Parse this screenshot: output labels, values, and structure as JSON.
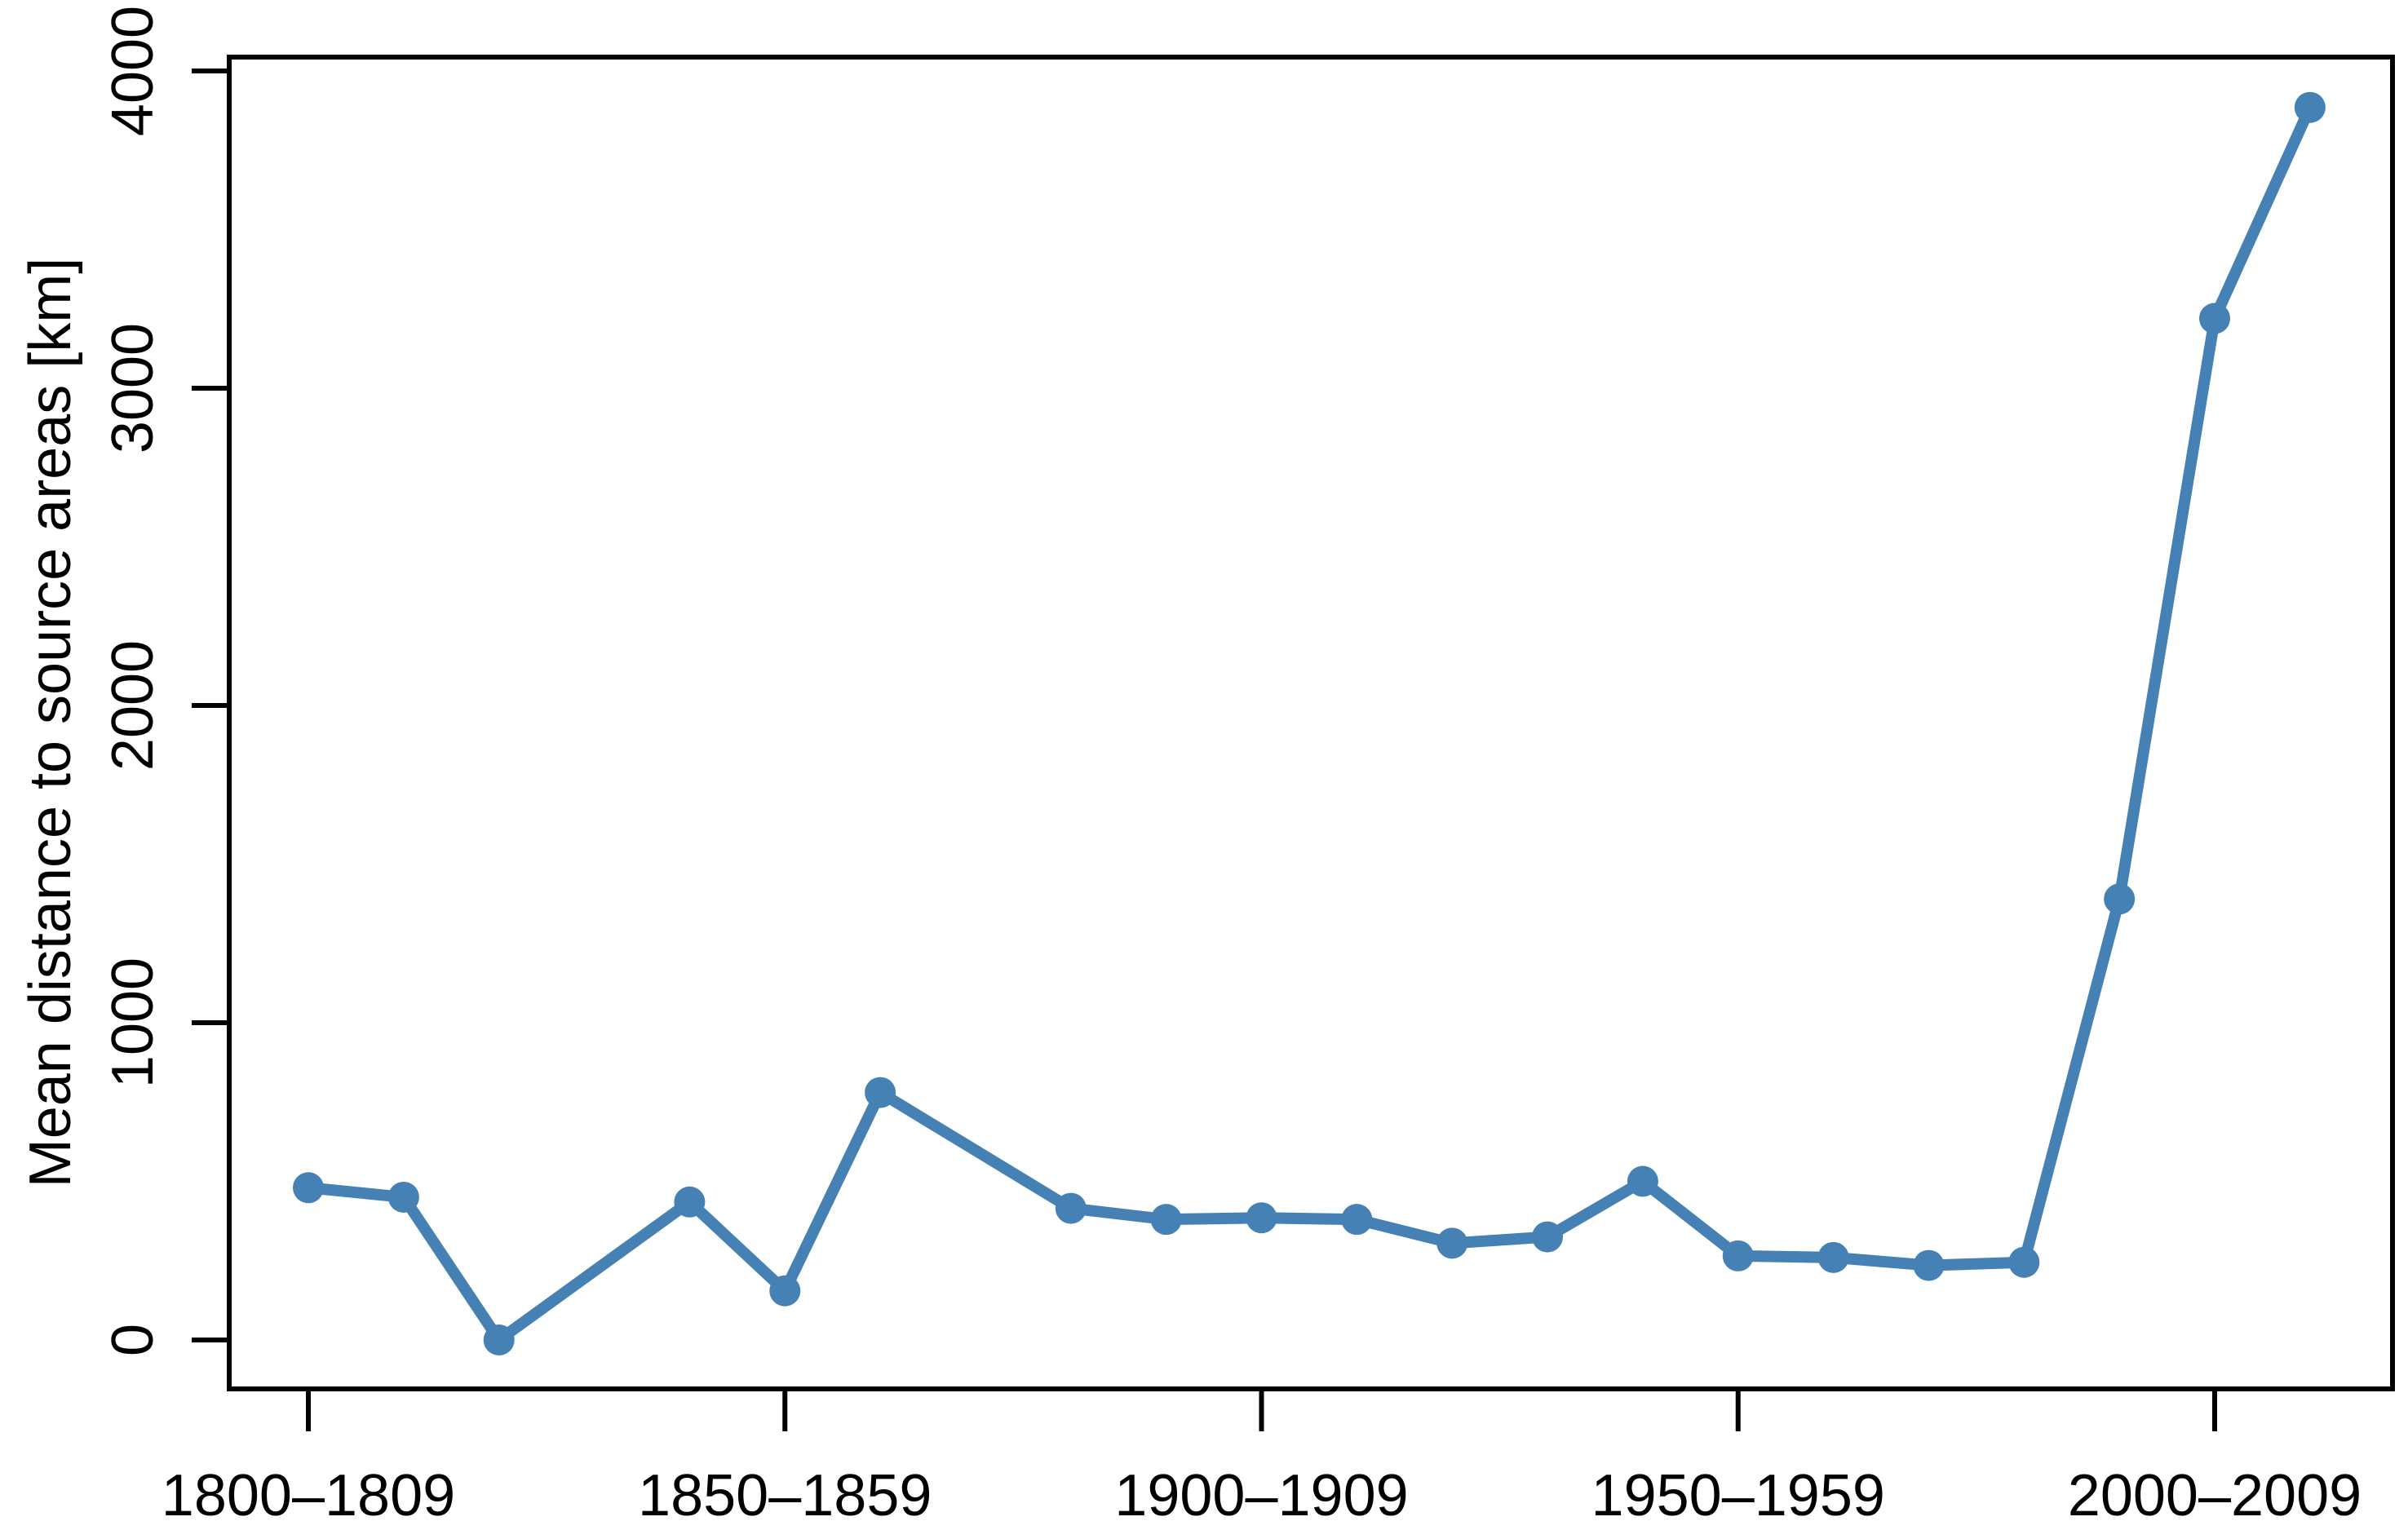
{
  "chart_data": {
    "type": "line",
    "title": "",
    "xlabel": "",
    "ylabel": "Mean distance to source areas [km]",
    "y_ticks": [
      0,
      1000,
      2000,
      3000,
      4000
    ],
    "y_tick_labels": [
      "0",
      "1000",
      "2000",
      "3000",
      "4000"
    ],
    "x_ticks": [
      {
        "start_year": 1800,
        "label": "1800–1809"
      },
      {
        "start_year": 1850,
        "label": "1850–1859"
      },
      {
        "start_year": 1900,
        "label": "1900–1909"
      },
      {
        "start_year": 1950,
        "label": "1950–1959"
      },
      {
        "start_year": 2000,
        "label": "2000–2009"
      }
    ],
    "xlim_years": [
      1791.5,
      2018.5
    ],
    "ylim": [
      -155,
      4045
    ],
    "grid": false,
    "legend": "none",
    "missing_decades": [
      "1830–1839",
      "1870–1879"
    ],
    "series": [
      {
        "name": "Mean distance to source areas",
        "color": "#4581B4",
        "points": [
          {
            "decade": "1800–1809",
            "start_year": 1800,
            "value": 480
          },
          {
            "decade": "1810–1819",
            "start_year": 1810,
            "value": 450
          },
          {
            "decade": "1820–1829",
            "start_year": 1820,
            "value": 0
          },
          {
            "decade": "1840–1849",
            "start_year": 1840,
            "value": 435
          },
          {
            "decade": "1850–1859",
            "start_year": 1850,
            "value": 155
          },
          {
            "decade": "1860–1869",
            "start_year": 1860,
            "value": 780
          },
          {
            "decade": "1880–1889",
            "start_year": 1880,
            "value": 415
          },
          {
            "decade": "1890–1899",
            "start_year": 1890,
            "value": 380
          },
          {
            "decade": "1900–1909",
            "start_year": 1900,
            "value": 385
          },
          {
            "decade": "1910–1919",
            "start_year": 1910,
            "value": 380
          },
          {
            "decade": "1920–1929",
            "start_year": 1920,
            "value": 305
          },
          {
            "decade": "1930–1939",
            "start_year": 1930,
            "value": 325
          },
          {
            "decade": "1940–1949",
            "start_year": 1940,
            "value": 500
          },
          {
            "decade": "1950–1959",
            "start_year": 1950,
            "value": 265
          },
          {
            "decade": "1960–1969",
            "start_year": 1960,
            "value": 260
          },
          {
            "decade": "1970–1979",
            "start_year": 1970,
            "value": 235
          },
          {
            "decade": "1980–1989",
            "start_year": 1980,
            "value": 245
          },
          {
            "decade": "1990–1999",
            "start_year": 1990,
            "value": 1390
          },
          {
            "decade": "2000–2009",
            "start_year": 2000,
            "value": 3220
          },
          {
            "decade": "2010–2019",
            "start_year": 2010,
            "value": 3885
          }
        ]
      }
    ]
  }
}
